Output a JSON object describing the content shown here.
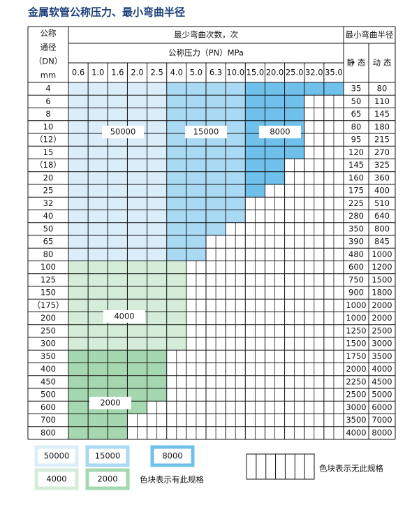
{
  "title": "金属软管公称压力、最小弯曲半径",
  "header": {
    "dn_lines": [
      "公称",
      "通径",
      "（DN）",
      "mm"
    ],
    "cycles": "最少弯曲次数，次",
    "pressure": "公称压力（PN）MPa",
    "radius": "最小弯曲半径",
    "static": "静 态",
    "dynamic": "动 态"
  },
  "pressures": [
    "0.6",
    "1.0",
    "1.6",
    "2.0",
    "2.5",
    "4.0",
    "5.0",
    "6.3",
    "10.0",
    "15.0",
    "20.0",
    "25.0",
    "32.0",
    "35.0"
  ],
  "rows": [
    [
      4,
      35,
      80
    ],
    [
      6,
      50,
      110
    ],
    [
      8,
      65,
      145
    ],
    [
      10,
      80,
      180
    ],
    [
      "（12）",
      95,
      215
    ],
    [
      15,
      120,
      270
    ],
    [
      "（18）",
      145,
      325
    ],
    [
      20,
      160,
      360
    ],
    [
      25,
      175,
      400
    ],
    [
      32,
      225,
      510
    ],
    [
      40,
      280,
      640
    ],
    [
      50,
      350,
      800
    ],
    [
      65,
      390,
      845
    ],
    [
      80,
      480,
      1000
    ],
    [
      100,
      600,
      1200
    ],
    [
      125,
      750,
      1500
    ],
    [
      150,
      900,
      1800
    ],
    [
      "（175）",
      1000,
      2000
    ],
    [
      200,
      1000,
      2000
    ],
    [
      250,
      1250,
      2500
    ],
    [
      300,
      1500,
      3000
    ],
    [
      350,
      1750,
      3500
    ],
    [
      400,
      2000,
      4000
    ],
    [
      450,
      2250,
      4500
    ],
    [
      500,
      2500,
      5000
    ],
    [
      600,
      3000,
      6000
    ],
    [
      700,
      3500,
      7000
    ],
    [
      800,
      4000,
      8000
    ]
  ],
  "zones": [
    "50000",
    "15000",
    "8000",
    "4000",
    "2000"
  ],
  "legend": {
    "has": "色块表示有此规格",
    "none": "色块表示无此规格"
  }
}
